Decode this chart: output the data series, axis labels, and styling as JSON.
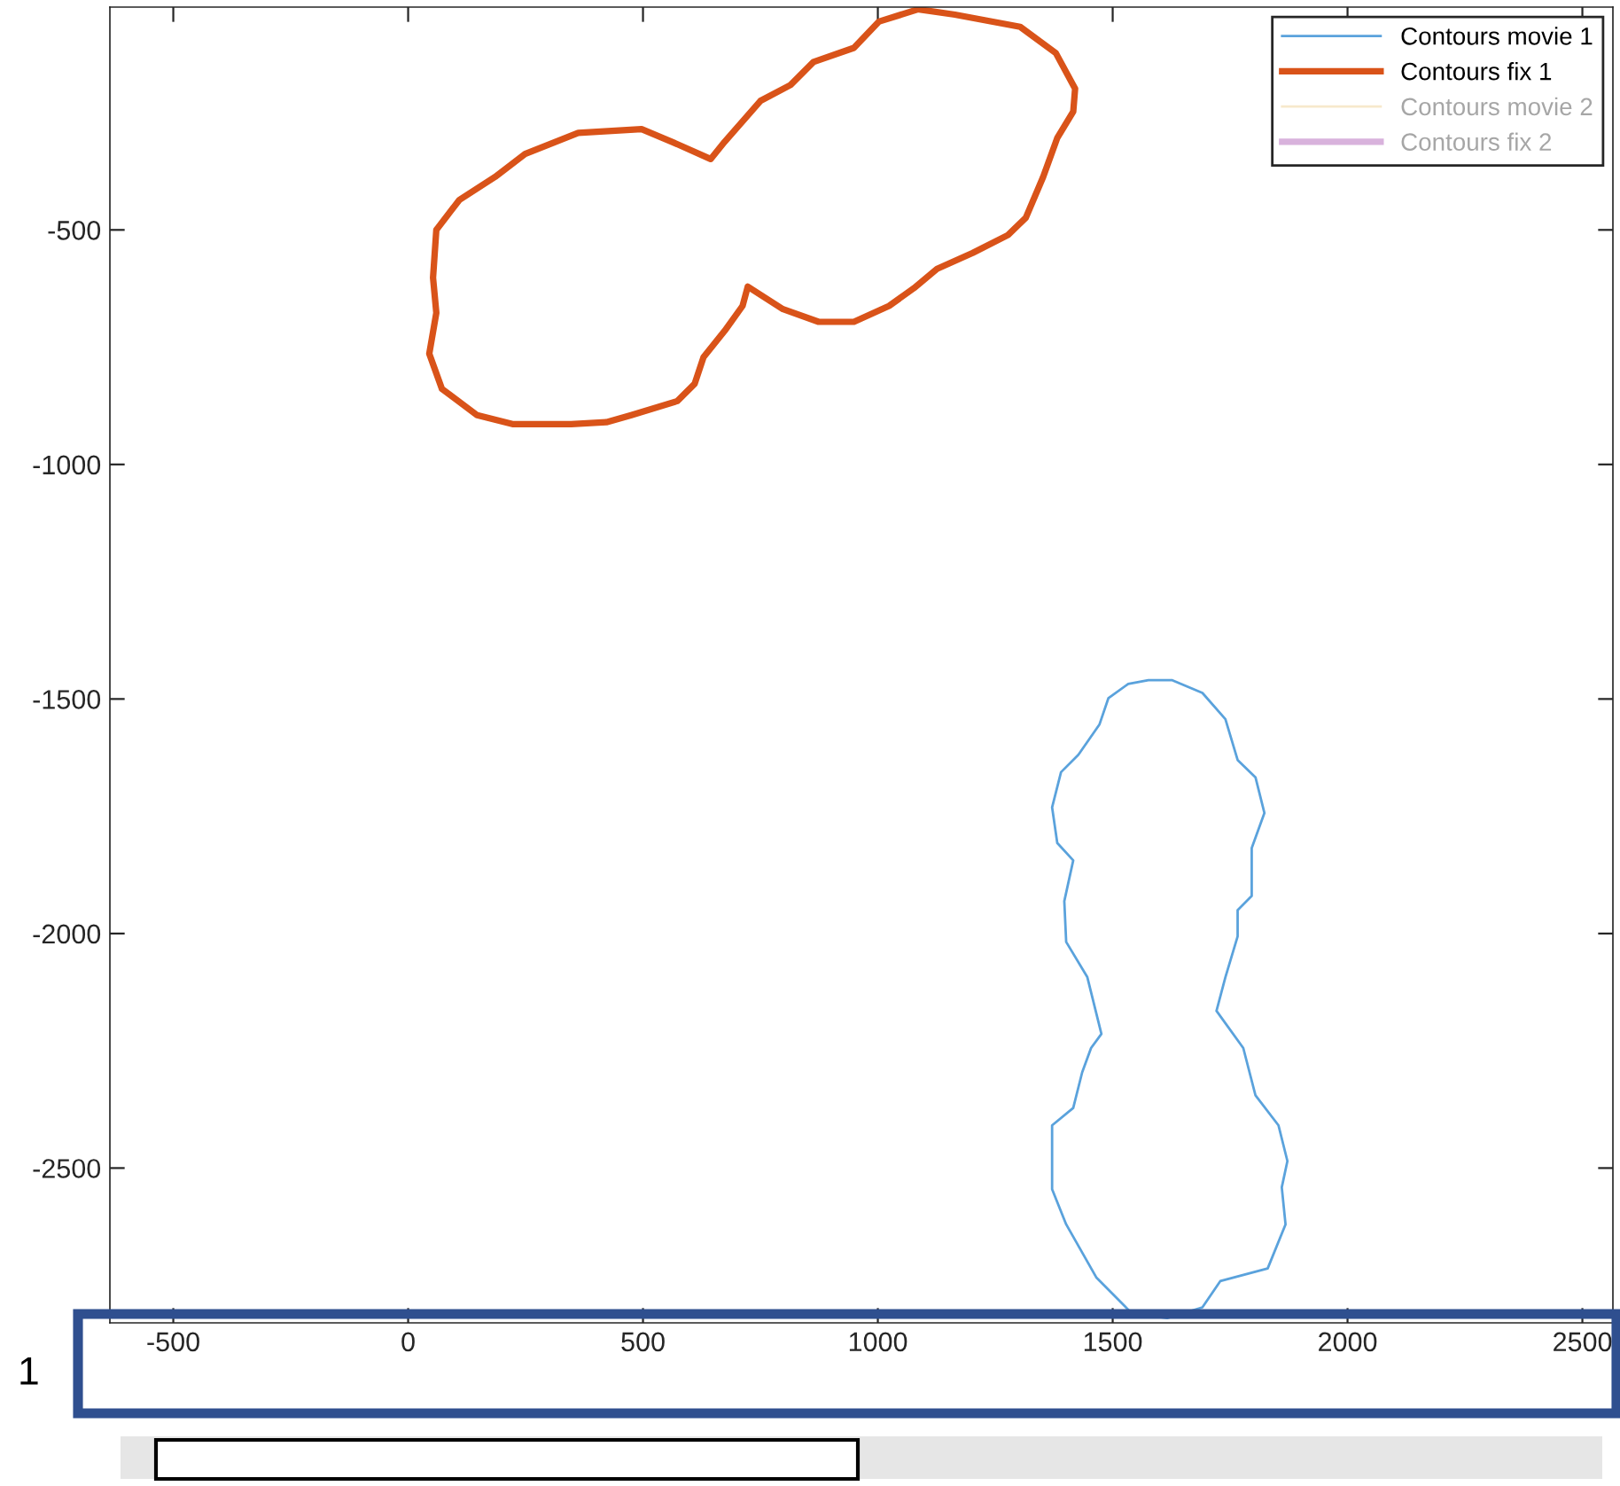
{
  "chart_data": {
    "type": "line",
    "xlim": [
      -635,
      2565
    ],
    "ylim": [
      -2830,
      -25
    ],
    "xticks": [
      -500,
      0,
      500,
      1000,
      1500,
      2000,
      2500
    ],
    "yticks": [
      -2500,
      -2000,
      -1500,
      -1000,
      -500
    ],
    "legend": "top right",
    "grid": false,
    "line_style": "solid",
    "annotations": [
      "1"
    ],
    "series": [
      {
        "name": "Contours movie 1",
        "color": "#5aa2dc",
        "x": [
          1578,
          1627,
          1691,
          1740,
          1766,
          1804,
          1823,
          1796,
          1796,
          1766,
          1766,
          1740,
          1721,
          1778,
          1804,
          1853,
          1872,
          1860,
          1868,
          1830,
          1729,
          1691,
          1616,
          1540,
          1465,
          1401,
          1371,
          1371,
          1416,
          1435,
          1454,
          1476,
          1446,
          1401,
          1397,
          1416,
          1382,
          1371,
          1390,
          1427,
          1472,
          1491,
          1533,
          1576
        ],
        "values": [
          -1460,
          -1460,
          -1487,
          -1543,
          -1630,
          -1667,
          -1743,
          -1818,
          -1920,
          -1950,
          -2006,
          -2093,
          -2165,
          -2244,
          -2345,
          -2409,
          -2485,
          -2541,
          -2620,
          -2714,
          -2741,
          -2797,
          -2820,
          -2809,
          -2733,
          -2620,
          -2545,
          -2409,
          -2372,
          -2296,
          -2244,
          -2214,
          -2093,
          -2018,
          -1931,
          -1844,
          -1807,
          -1731,
          -1656,
          -1619,
          -1554,
          -1498,
          -1468,
          -1460
        ]
      },
      {
        "name": "Contours fix 1",
        "color": "#d95319",
        "x": [
          1088,
          1164,
          1303,
          1379,
          1420,
          1416,
          1382,
          1352,
          1315,
          1277,
          1202,
          1126,
          1077,
          1024,
          949,
          874,
          798,
          723,
          712,
          674,
          629,
          610,
          573,
          475,
          422,
          347,
          222,
          147,
          72,
          45,
          60,
          53,
          60,
          109,
          185,
          249,
          362,
          497,
          561,
          644,
          674,
          750,
          814,
          863,
          949,
          1002,
          1085
        ],
        "values": [
          -30,
          -41,
          -67,
          -123,
          -199,
          -248,
          -304,
          -387,
          -474,
          -511,
          -549,
          -583,
          -624,
          -662,
          -696,
          -696,
          -669,
          -621,
          -662,
          -715,
          -771,
          -828,
          -865,
          -895,
          -910,
          -914,
          -914,
          -895,
          -839,
          -764,
          -677,
          -602,
          -500,
          -436,
          -387,
          -338,
          -293,
          -285,
          -312,
          -349,
          -312,
          -225,
          -191,
          -142,
          -112,
          -56,
          -30
        ]
      },
      {
        "name": "Contours movie 2",
        "color": "#f7e9cc"
      },
      {
        "name": "Contours fix 2",
        "color": "#d8b2dc"
      }
    ]
  }
}
